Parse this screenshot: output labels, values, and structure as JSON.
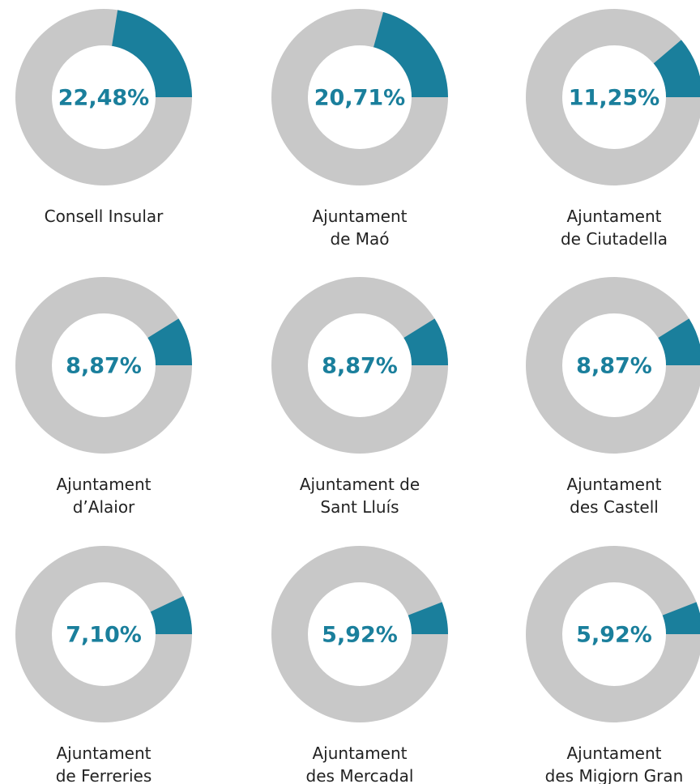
{
  "chart_data": [
    {
      "type": "pie",
      "title": "Consell Insular",
      "values": [
        22.48
      ],
      "value_labels": [
        "22,48%"
      ],
      "color": "#1a7f9c"
    },
    {
      "type": "pie",
      "title": "Ajuntament\nde Maó",
      "values": [
        20.71
      ],
      "value_labels": [
        "20,71%"
      ],
      "color": "#1a7f9c"
    },
    {
      "type": "pie",
      "title": "Ajuntament\nde Ciutadella",
      "values": [
        11.25
      ],
      "value_labels": [
        "11,25%"
      ],
      "color": "#1a7f9c"
    },
    {
      "type": "pie",
      "title": "Ajuntament\nd’Alaior",
      "values": [
        8.87
      ],
      "value_labels": [
        "8,87%"
      ],
      "color": "#1a7f9c"
    },
    {
      "type": "pie",
      "title": "Ajuntament de\nSant Lluís",
      "values": [
        8.87
      ],
      "value_labels": [
        "8,87%"
      ],
      "color": "#1a7f9c"
    },
    {
      "type": "pie",
      "title": "Ajuntament\ndes Castell",
      "values": [
        8.87
      ],
      "value_labels": [
        "8,87%"
      ],
      "color": "#1a7f9c"
    },
    {
      "type": "pie",
      "title": "Ajuntament\nde Ferreries",
      "values": [
        7.1
      ],
      "value_labels": [
        "7,10%"
      ],
      "color": "#1a7f9c"
    },
    {
      "type": "pie",
      "title": "Ajuntament\ndes Mercadal",
      "values": [
        5.92
      ],
      "value_labels": [
        "5,92%"
      ],
      "color": "#1a7f9c"
    },
    {
      "type": "pie",
      "title": "Ajuntament\ndes Migjorn Gran",
      "values": [
        5.92
      ],
      "value_labels": [
        "5,92%"
      ],
      "color": "#1a7f9c"
    }
  ]
}
